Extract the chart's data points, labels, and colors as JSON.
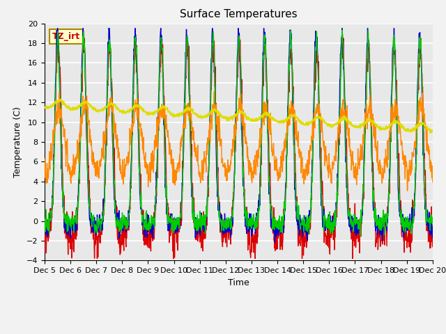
{
  "title": "Surface Temperatures",
  "ylabel": "Temperature (C)",
  "xlabel": "Time",
  "ylim": [
    -4,
    20
  ],
  "xlim": [
    0,
    15
  ],
  "x_tick_labels": [
    "Dec 5",
    "Dec 6",
    "Dec 7",
    "Dec 8",
    "Dec 9",
    "Dec 10",
    "Dec 11",
    "Dec 12",
    "Dec 13",
    "Dec 14",
    "Dec 15",
    "Dec 16",
    "Dec 17",
    "Dec 18",
    "Dec 19",
    "Dec 20"
  ],
  "annotation_text": "TZ_irt",
  "annotation_color": "#cc0000",
  "annotation_bg": "#ffffcc",
  "annotation_edge": "#aa8800",
  "series": {
    "IRT Ground": {
      "color": "#dd0000",
      "lw": 1.0
    },
    "IRT Canopy": {
      "color": "#0000cc",
      "lw": 1.0
    },
    "Floor Tair": {
      "color": "#00cc00",
      "lw": 1.0
    },
    "Tower TAir": {
      "color": "#ff8800",
      "lw": 1.0
    },
    "TsoilD_2cm": {
      "color": "#dddd00",
      "lw": 1.5
    }
  },
  "bg_color": "#e8e8e8",
  "grid_color": "#ffffff",
  "title_fontsize": 11,
  "axis_fontsize": 9,
  "tick_fontsize": 8,
  "legend_fontsize": 9
}
